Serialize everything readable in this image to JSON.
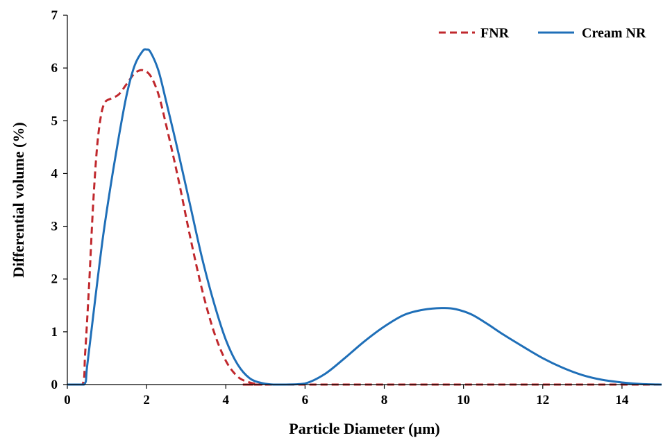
{
  "chart_data": {
    "type": "line",
    "title": "",
    "xlabel": "Particle Diameter (µm)",
    "ylabel": "Differential volume (%)",
    "xlim": [
      0,
      15
    ],
    "ylim": [
      0,
      7
    ],
    "xticks": [
      "0",
      "2",
      "4",
      "6",
      "8",
      "10",
      "12",
      "14"
    ],
    "yticks": [
      "0",
      "1",
      "2",
      "3",
      "4",
      "5",
      "6",
      "7"
    ],
    "grid": false,
    "legend_position": "top-right",
    "series": [
      {
        "name": "FNR",
        "color": "#c0282d",
        "style": "dashed",
        "x": [
          0,
          0.38,
          0.45,
          0.55,
          0.65,
          0.75,
          0.85,
          0.95,
          1.1,
          1.3,
          1.5,
          1.7,
          1.9,
          2.1,
          2.3,
          2.5,
          2.8,
          3.1,
          3.4,
          3.7,
          4.0,
          4.3,
          4.6,
          4.9,
          5.2,
          15
        ],
        "y": [
          0,
          0,
          0.6,
          1.9,
          3.4,
          4.5,
          5.1,
          5.35,
          5.42,
          5.5,
          5.7,
          5.9,
          5.96,
          5.85,
          5.5,
          4.9,
          3.9,
          2.8,
          1.8,
          1.0,
          0.45,
          0.15,
          0.04,
          0.0,
          0,
          0
        ]
      },
      {
        "name": "Cream NR",
        "color": "#1f6fb8",
        "style": "solid",
        "x": [
          0,
          0.42,
          0.5,
          0.7,
          0.9,
          1.1,
          1.3,
          1.5,
          1.7,
          1.9,
          2.0,
          2.1,
          2.3,
          2.5,
          2.8,
          3.1,
          3.4,
          3.7,
          4.0,
          4.3,
          4.6,
          4.9,
          5.2,
          5.5,
          6.0,
          6.5,
          7.0,
          7.5,
          8.0,
          8.5,
          9.0,
          9.5,
          9.8,
          10.2,
          10.6,
          11.0,
          11.5,
          12.0,
          12.5,
          13.0,
          13.5,
          14.0,
          14.5,
          15.0
        ],
        "y": [
          0,
          0,
          0.35,
          1.6,
          2.8,
          3.8,
          4.7,
          5.5,
          6.05,
          6.32,
          6.35,
          6.3,
          5.95,
          5.35,
          4.4,
          3.4,
          2.4,
          1.55,
          0.85,
          0.38,
          0.12,
          0.03,
          0.0,
          0.0,
          0.02,
          0.2,
          0.5,
          0.82,
          1.1,
          1.32,
          1.42,
          1.45,
          1.43,
          1.33,
          1.15,
          0.95,
          0.72,
          0.5,
          0.32,
          0.18,
          0.09,
          0.04,
          0.01,
          0.0
        ]
      }
    ]
  }
}
